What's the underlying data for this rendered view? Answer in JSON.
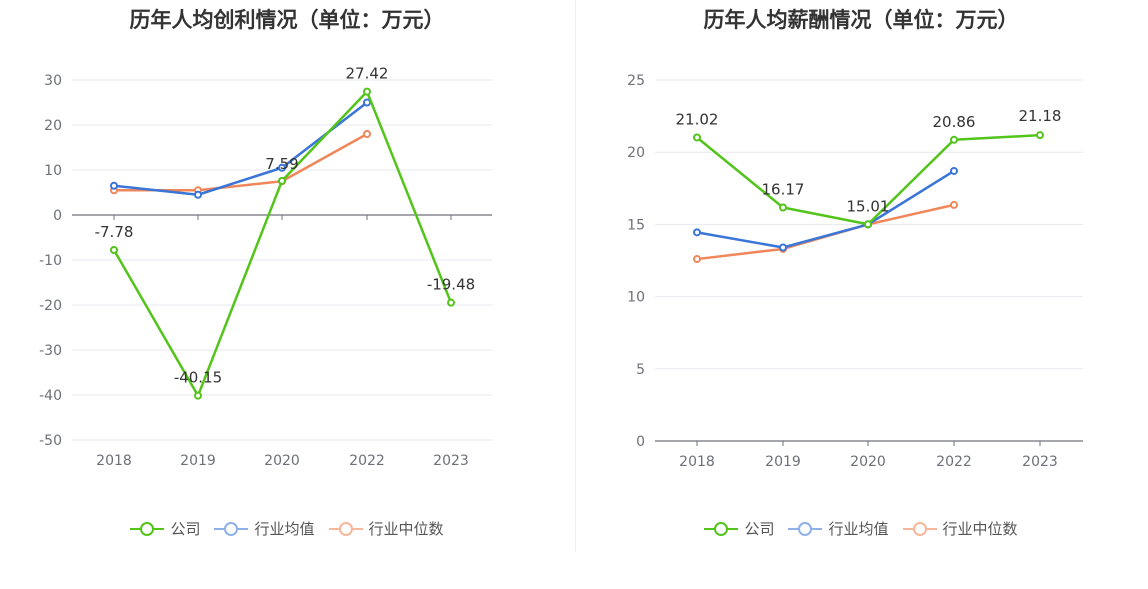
{
  "chart_data": [
    {
      "type": "line",
      "title": "历年人均创利情况（单位：万元）",
      "categories": [
        "2018",
        "2019",
        "2020",
        "2022",
        "2023"
      ],
      "ylim": [
        -50,
        30
      ],
      "yticks": [
        30,
        20,
        10,
        0,
        -10,
        -20,
        -30,
        -40,
        -50
      ],
      "grid": true,
      "legend_position": "bottom",
      "series": [
        {
          "name": "公司",
          "color": "#52c41a",
          "values": [
            -7.78,
            -40.15,
            7.59,
            27.42,
            -19.48
          ],
          "labels": [
            "-7.78",
            "-40.15",
            "7.59",
            "27.42",
            "-19.48"
          ]
        },
        {
          "name": "行业均值",
          "color": "#3a75d8",
          "values": [
            6.5,
            4.5,
            10.5,
            25.0,
            null
          ]
        },
        {
          "name": "行业中位数",
          "color": "#f0875a",
          "values": [
            5.5,
            5.5,
            7.5,
            18.0,
            null
          ]
        }
      ]
    },
    {
      "type": "line",
      "title": "历年人均薪酬情况（单位：万元）",
      "categories": [
        "2018",
        "2019",
        "2020",
        "2022",
        "2023"
      ],
      "ylim": [
        0,
        25
      ],
      "yticks": [
        25,
        20,
        15,
        10,
        5,
        0
      ],
      "grid": true,
      "legend_position": "bottom",
      "series": [
        {
          "name": "公司",
          "color": "#52c41a",
          "values": [
            21.02,
            16.17,
            15.01,
            20.86,
            21.18
          ],
          "labels": [
            "21.02",
            "16.17",
            "15.01",
            "20.86",
            "21.18"
          ]
        },
        {
          "name": "行业均值",
          "color": "#3a75d8",
          "values": [
            14.45,
            13.4,
            15.0,
            18.7,
            null
          ]
        },
        {
          "name": "行业中位数",
          "color": "#f0875a",
          "values": [
            12.6,
            13.3,
            15.0,
            16.35,
            null
          ]
        }
      ]
    }
  ]
}
